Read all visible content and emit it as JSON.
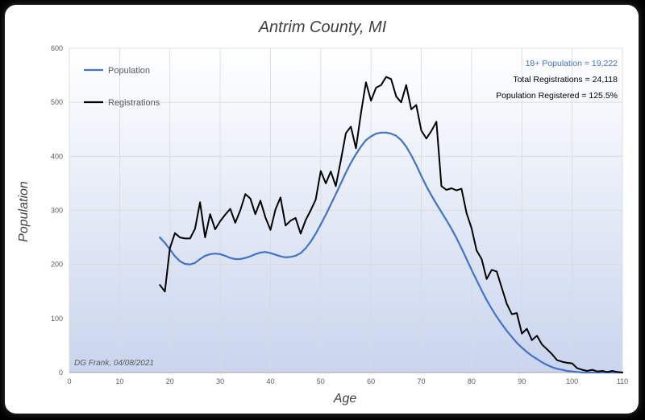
{
  "chart_data": {
    "type": "line",
    "title": "Antrim County, MI",
    "xlabel": "Age",
    "ylabel": "Population",
    "xlim": [
      0,
      110
    ],
    "ylim": [
      0,
      600
    ],
    "x_ticks": [
      0,
      10,
      20,
      30,
      40,
      50,
      60,
      70,
      80,
      90,
      100,
      110
    ],
    "y_ticks": [
      0,
      100,
      200,
      300,
      400,
      500,
      600
    ],
    "grid": true,
    "legend_position": "top-left",
    "series": [
      {
        "name": "Population",
        "color": "#4472c4",
        "points": [
          [
            18,
            250
          ],
          [
            19,
            240
          ],
          [
            20,
            228
          ],
          [
            21,
            215
          ],
          [
            22,
            206
          ],
          [
            23,
            201
          ],
          [
            24,
            200
          ],
          [
            25,
            203
          ],
          [
            26,
            210
          ],
          [
            27,
            216
          ],
          [
            28,
            219
          ],
          [
            29,
            220
          ],
          [
            30,
            219
          ],
          [
            31,
            216
          ],
          [
            32,
            212
          ],
          [
            33,
            210
          ],
          [
            34,
            210
          ],
          [
            35,
            212
          ],
          [
            36,
            215
          ],
          [
            37,
            219
          ],
          [
            38,
            222
          ],
          [
            39,
            223
          ],
          [
            40,
            221
          ],
          [
            41,
            218
          ],
          [
            42,
            215
          ],
          [
            43,
            213
          ],
          [
            44,
            214
          ],
          [
            45,
            216
          ],
          [
            46,
            221
          ],
          [
            47,
            230
          ],
          [
            48,
            242
          ],
          [
            49,
            257
          ],
          [
            50,
            274
          ],
          [
            51,
            292
          ],
          [
            52,
            311
          ],
          [
            53,
            330
          ],
          [
            54,
            350
          ],
          [
            55,
            370
          ],
          [
            56,
            388
          ],
          [
            57,
            404
          ],
          [
            58,
            418
          ],
          [
            59,
            430
          ],
          [
            60,
            437
          ],
          [
            61,
            442
          ],
          [
            62,
            444
          ],
          [
            63,
            444
          ],
          [
            64,
            442
          ],
          [
            65,
            438
          ],
          [
            66,
            430
          ],
          [
            67,
            418
          ],
          [
            68,
            402
          ],
          [
            69,
            384
          ],
          [
            70,
            364
          ],
          [
            71,
            345
          ],
          [
            72,
            328
          ],
          [
            73,
            312
          ],
          [
            74,
            297
          ],
          [
            75,
            282
          ],
          [
            76,
            266
          ],
          [
            77,
            249
          ],
          [
            78,
            230
          ],
          [
            79,
            210
          ],
          [
            80,
            190
          ],
          [
            81,
            171
          ],
          [
            82,
            152
          ],
          [
            83,
            134
          ],
          [
            84,
            118
          ],
          [
            85,
            103
          ],
          [
            86,
            90
          ],
          [
            87,
            77
          ],
          [
            88,
            66
          ],
          [
            89,
            55
          ],
          [
            90,
            46
          ],
          [
            91,
            38
          ],
          [
            92,
            31
          ],
          [
            93,
            25
          ],
          [
            94,
            19
          ],
          [
            95,
            14
          ],
          [
            96,
            10
          ],
          [
            97,
            7
          ],
          [
            98,
            5
          ],
          [
            99,
            3
          ],
          [
            100,
            2
          ],
          [
            101,
            1
          ],
          [
            102,
            0
          ],
          [
            110,
            0
          ]
        ]
      },
      {
        "name": "Registrations",
        "color": "#000000",
        "points": [
          [
            18,
            162
          ],
          [
            19,
            150
          ],
          [
            20,
            230
          ],
          [
            21,
            258
          ],
          [
            22,
            250
          ],
          [
            23,
            248
          ],
          [
            24,
            248
          ],
          [
            25,
            266
          ],
          [
            26,
            315
          ],
          [
            27,
            250
          ],
          [
            28,
            293
          ],
          [
            29,
            265
          ],
          [
            30,
            280
          ],
          [
            31,
            292
          ],
          [
            32,
            303
          ],
          [
            33,
            277
          ],
          [
            34,
            300
          ],
          [
            35,
            330
          ],
          [
            36,
            322
          ],
          [
            37,
            293
          ],
          [
            38,
            318
          ],
          [
            39,
            287
          ],
          [
            40,
            264
          ],
          [
            41,
            302
          ],
          [
            42,
            324
          ],
          [
            43,
            272
          ],
          [
            44,
            281
          ],
          [
            45,
            286
          ],
          [
            46,
            257
          ],
          [
            47,
            282
          ],
          [
            48,
            300
          ],
          [
            49,
            320
          ],
          [
            50,
            373
          ],
          [
            51,
            350
          ],
          [
            52,
            372
          ],
          [
            53,
            345
          ],
          [
            54,
            393
          ],
          [
            55,
            443
          ],
          [
            56,
            455
          ],
          [
            57,
            415
          ],
          [
            58,
            480
          ],
          [
            59,
            537
          ],
          [
            60,
            503
          ],
          [
            61,
            527
          ],
          [
            62,
            532
          ],
          [
            63,
            547
          ],
          [
            64,
            543
          ],
          [
            65,
            511
          ],
          [
            66,
            500
          ],
          [
            67,
            532
          ],
          [
            68,
            487
          ],
          [
            69,
            495
          ],
          [
            70,
            448
          ],
          [
            71,
            433
          ],
          [
            72,
            447
          ],
          [
            73,
            464
          ],
          [
            74,
            345
          ],
          [
            75,
            338
          ],
          [
            76,
            341
          ],
          [
            77,
            337
          ],
          [
            78,
            340
          ],
          [
            79,
            295
          ],
          [
            80,
            267
          ],
          [
            81,
            226
          ],
          [
            82,
            210
          ],
          [
            83,
            173
          ],
          [
            84,
            190
          ],
          [
            85,
            187
          ],
          [
            86,
            157
          ],
          [
            87,
            127
          ],
          [
            88,
            108
          ],
          [
            89,
            110
          ],
          [
            90,
            72
          ],
          [
            91,
            81
          ],
          [
            92,
            60
          ],
          [
            93,
            68
          ],
          [
            94,
            52
          ],
          [
            95,
            43
          ],
          [
            96,
            34
          ],
          [
            97,
            23
          ],
          [
            98,
            20
          ],
          [
            99,
            18
          ],
          [
            100,
            17
          ],
          [
            101,
            8
          ],
          [
            102,
            5
          ],
          [
            103,
            3
          ],
          [
            104,
            5
          ],
          [
            105,
            2
          ],
          [
            106,
            3
          ],
          [
            107,
            1
          ],
          [
            108,
            3
          ],
          [
            109,
            1
          ],
          [
            110,
            0
          ]
        ]
      }
    ],
    "annotations": {
      "population_18plus": "18+ Population = 19,222",
      "total_registrations": "Total Registrations = 24,118",
      "population_registered": "Population Registered = 125.5%",
      "credit": "DG Frank, 04/08/2021"
    }
  },
  "colors": {
    "plot_top": "#ffffff",
    "plot_bottom": "#c9d5ee",
    "grid": "#d9d9d9",
    "axis": "#a6a6a6"
  }
}
